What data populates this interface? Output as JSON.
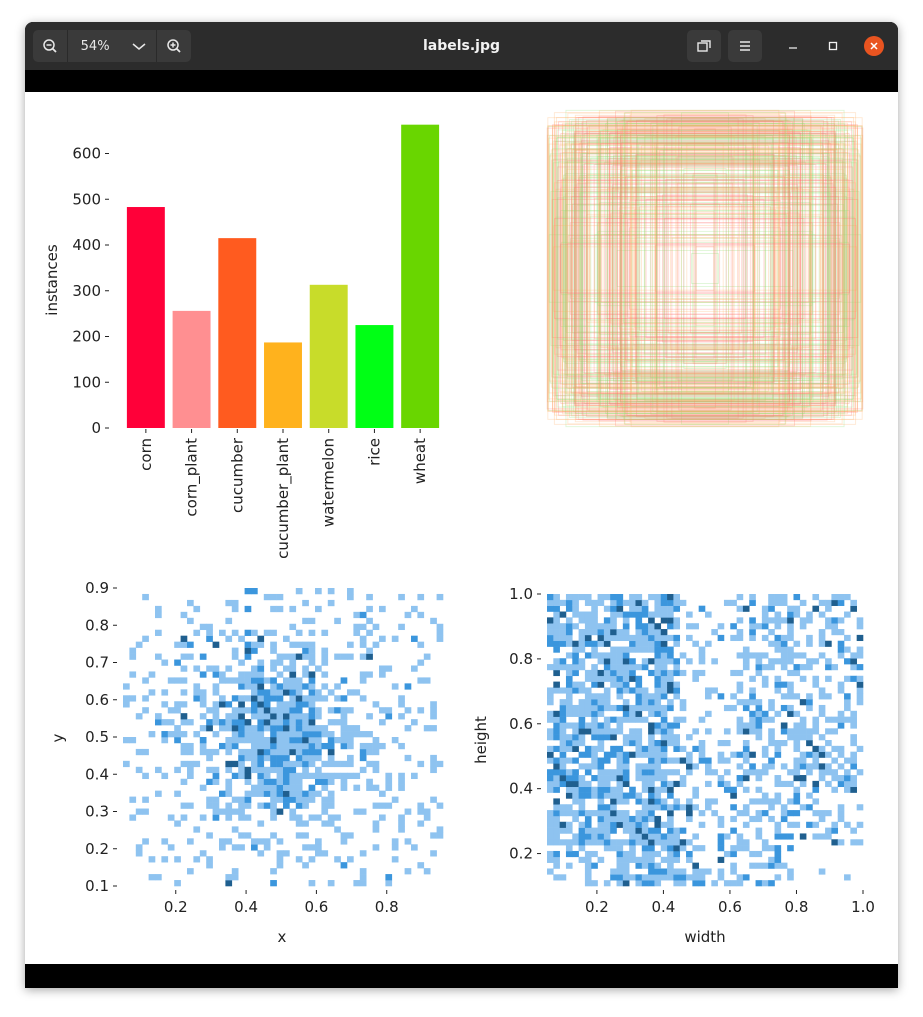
{
  "window": {
    "title": "labels.jpg",
    "zoom_level": "54%"
  },
  "icons": {
    "zoom_out": "zoom-out-icon",
    "zoom_in": "zoom-in-icon",
    "dropdown": "chevron-down-icon",
    "fit": "fit-window-icon",
    "menu": "hamburger-menu-icon",
    "minimize": "minimize-icon",
    "maximize": "maximize-icon",
    "close": "close-icon"
  },
  "colors": {
    "titlebar": "#2c2c2c",
    "close_button": "#e95420",
    "hist_light": "#8ec3f0",
    "hist_mid": "#3b96dd",
    "hist_dark": "#1f5f8f"
  },
  "chart_data": [
    {
      "type": "bar",
      "ylabel": "instances",
      "categories": [
        "corn",
        "corn_plant",
        "cucumber",
        "cucumber_plant",
        "watermelon",
        "rice",
        "wheat"
      ],
      "values": [
        483,
        256,
        415,
        187,
        313,
        225,
        663
      ],
      "colors": [
        "#ff0039",
        "#ff8f91",
        "#ff5b1f",
        "#ffb21d",
        "#c8dc2a",
        "#00ff15",
        "#69d600"
      ],
      "ylim": [
        0,
        700
      ],
      "yticks": [
        0,
        100,
        200,
        300,
        400,
        500,
        600
      ]
    },
    {
      "type": "other",
      "description_visual": "overlaid bounding boxes",
      "box_colors": [
        "#ff6b6b",
        "#88e070",
        "#ffae60"
      ]
    },
    {
      "type": "heatmap",
      "xlabel": "x",
      "ylabel": "y",
      "xlim": [
        0.05,
        0.96
      ],
      "ylim": [
        0.1,
        0.9
      ],
      "xticks": [
        "0.2",
        "0.4",
        "0.6",
        "0.8"
      ],
      "yticks": [
        "0.1",
        "0.2",
        "0.3",
        "0.4",
        "0.5",
        "0.6",
        "0.7",
        "0.8",
        "0.9"
      ],
      "xtick_values": [
        0.2,
        0.4,
        0.6,
        0.8
      ],
      "ytick_values": [
        0.1,
        0.2,
        0.3,
        0.4,
        0.5,
        0.6,
        0.7,
        0.8,
        0.9
      ],
      "center": [
        0.5,
        0.5
      ]
    },
    {
      "type": "heatmap",
      "xlabel": "width",
      "ylabel": "height",
      "xlim": [
        0.05,
        1.0
      ],
      "ylim": [
        0.1,
        1.0
      ],
      "xticks": [
        "0.2",
        "0.4",
        "0.6",
        "0.8",
        "1.0"
      ],
      "yticks": [
        "0.2",
        "0.4",
        "0.6",
        "0.8",
        "1.0"
      ],
      "xtick_values": [
        0.2,
        0.4,
        0.6,
        0.8,
        1.0
      ],
      "ytick_values": [
        0.2,
        0.4,
        0.6,
        0.8,
        1.0
      ]
    }
  ]
}
